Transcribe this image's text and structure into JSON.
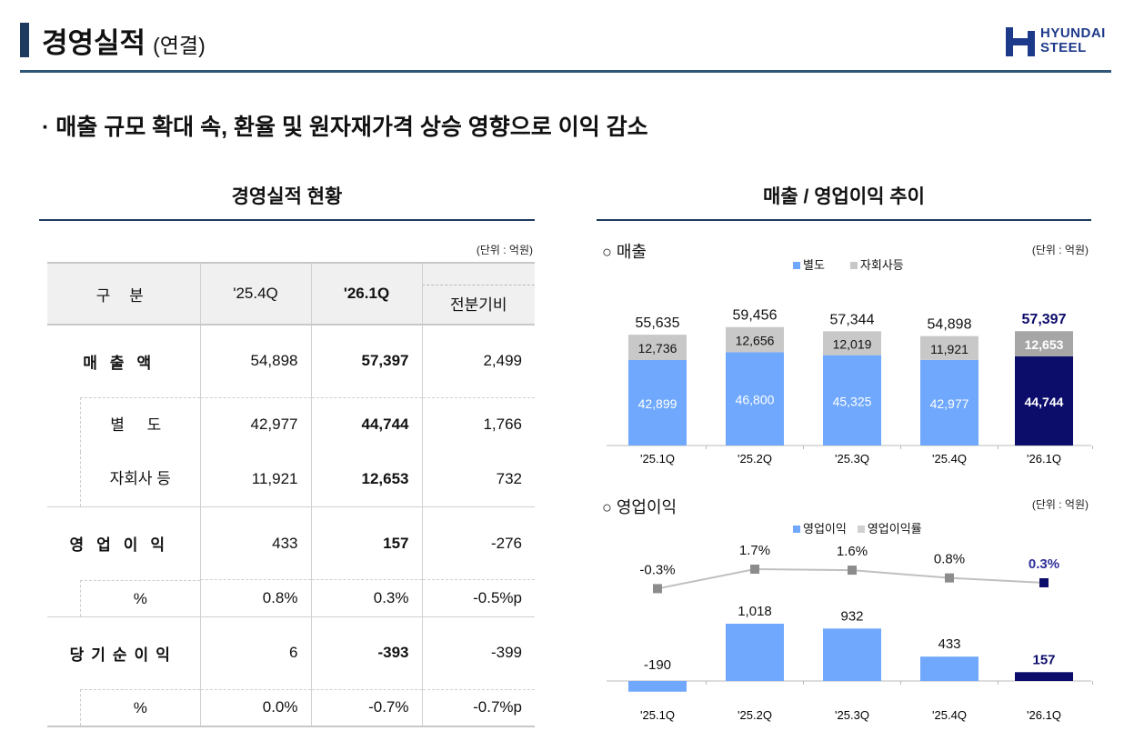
{
  "header": {
    "title": "경영실적",
    "title_suffix": "(연결)",
    "logo_line1": "HYUNDAI",
    "logo_line2": "STEEL",
    "brand_color": "#1d3a8a"
  },
  "subtitle": "· 매출 규모 확대 속, 환율 및 원자재가격 상승 영향으로 이익 감소",
  "table_section": {
    "heading": "경영실적 현황",
    "unit": "(단위 : 억원)",
    "columns": [
      "구 분",
      "'25.4Q",
      "'26.1Q",
      "전분기비"
    ],
    "rows": [
      {
        "label": "매출액",
        "values": [
          "54,898",
          "57,397",
          "2,499"
        ]
      },
      {
        "label": "별 도",
        "values": [
          "42,977",
          "44,744",
          "1,766"
        ]
      },
      {
        "label": "자회사 등",
        "values": [
          "11,921",
          "12,653",
          "732"
        ]
      },
      {
        "label": "영업이익",
        "values": [
          "433",
          "157",
          "-276"
        ]
      },
      {
        "label": "%",
        "values": [
          "0.8%",
          "0.3%",
          "-0.5%p"
        ]
      },
      {
        "label": "당기순이익",
        "values": [
          "6",
          "-393",
          "-399"
        ]
      },
      {
        "label": "%",
        "values": [
          "0.0%",
          "-0.7%",
          "-0.7%p"
        ]
      }
    ]
  },
  "chart_section": {
    "heading": "매출 / 영업이익 추이"
  },
  "chart_data": [
    {
      "type": "bar",
      "stacked": true,
      "title": "○ 매출",
      "unit": "(단위 : 억원)",
      "legend_position": "top",
      "categories": [
        "'25.1Q",
        "'25.2Q",
        "'25.3Q",
        "'25.4Q",
        "'26.1Q"
      ],
      "series": [
        {
          "name": "별도",
          "values": [
            42899,
            46800,
            45325,
            42977,
            44744
          ],
          "color": "#6fa8fc",
          "highlight_color": "#0c0c6a"
        },
        {
          "name": "자회사등",
          "values": [
            12736,
            12656,
            12019,
            11921,
            12653
          ],
          "color": "#c8c8c8",
          "highlight_color": "#a6a6a6"
        }
      ],
      "totals": [
        55635,
        59456,
        57344,
        54898,
        57397
      ],
      "highlight_color": "#0c0c6a",
      "grid": false
    },
    {
      "type": "bar+line",
      "title": "○ 영업이익",
      "unit": "(단위 : 억원)",
      "legend_position": "top",
      "categories": [
        "'25.1Q",
        "'25.2Q",
        "'25.3Q",
        "'25.4Q",
        "'26.1Q"
      ],
      "series": [
        {
          "name": "영업이익",
          "type": "bar",
          "values": [
            -190,
            1018,
            932,
            433,
            157
          ],
          "color": "#6fa8fc",
          "highlight_color": "#0c0c6a"
        },
        {
          "name": "영업이익률",
          "type": "line",
          "values": [
            -0.3,
            1.7,
            1.6,
            0.8,
            0.3
          ],
          "unit": "%",
          "color": "#8c8c8c",
          "highlight_color": "#0c0c6a"
        }
      ],
      "grid": false
    }
  ]
}
